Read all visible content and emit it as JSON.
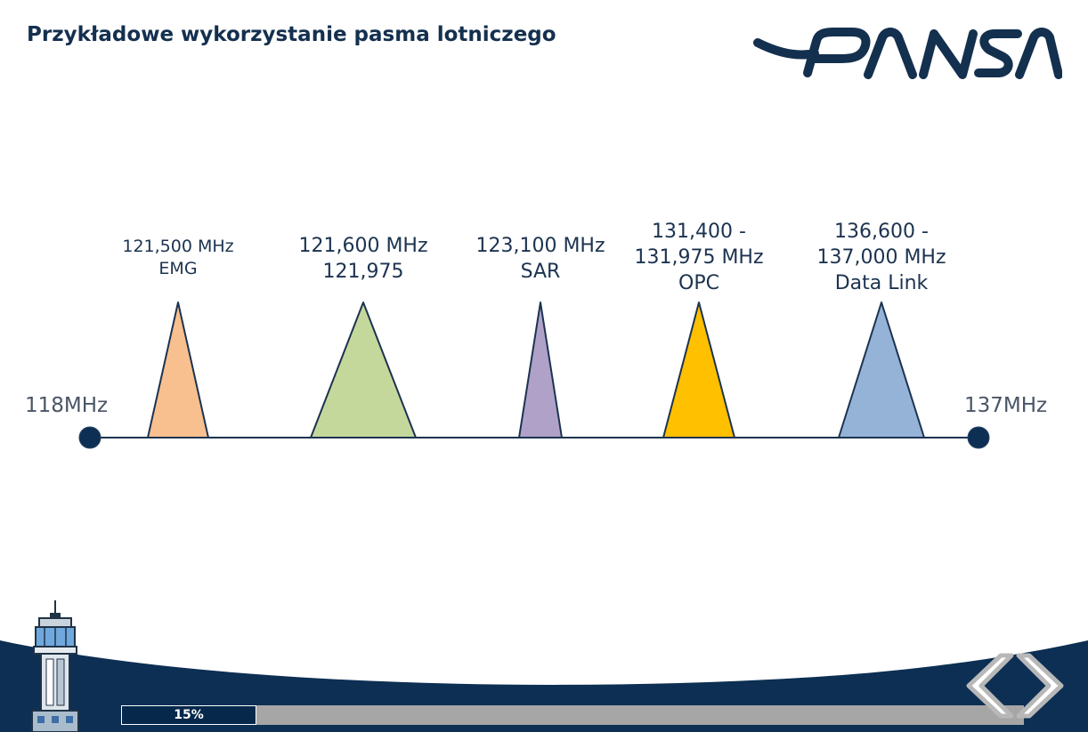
{
  "slide": {
    "title": "Przykładowe wykorzystanie pasma lotniczego",
    "logo_text": "PANSA"
  },
  "spectrum": {
    "start_label": "118MHz",
    "end_label": "137MHz",
    "start_mhz": 118,
    "end_mhz": 137,
    "bands": [
      {
        "lines": [
          "121,500 MHz",
          "EMG"
        ],
        "color": "#f8c08f"
      },
      {
        "lines": [
          "121,600 MHz",
          "121,975"
        ],
        "color": "#c5d89c"
      },
      {
        "lines": [
          "123,100 MHz",
          "SAR"
        ],
        "color": "#b0a1c8"
      },
      {
        "lines": [
          "131,400 -",
          "131,975 MHz",
          "OPC"
        ],
        "color": "#ffc000"
      },
      {
        "lines": [
          "136,600 -",
          "137,000 MHz",
          "Data Link"
        ],
        "color": "#95b3d7"
      }
    ],
    "line_color": "#1c3350"
  },
  "footer": {
    "progress_percent": 15,
    "progress_label": "15%",
    "prev_label": "previous",
    "next_label": "next"
  },
  "colors": {
    "navy": "#06284b",
    "wave": "#0d2f53",
    "button_gray": "#c9c9c9"
  }
}
